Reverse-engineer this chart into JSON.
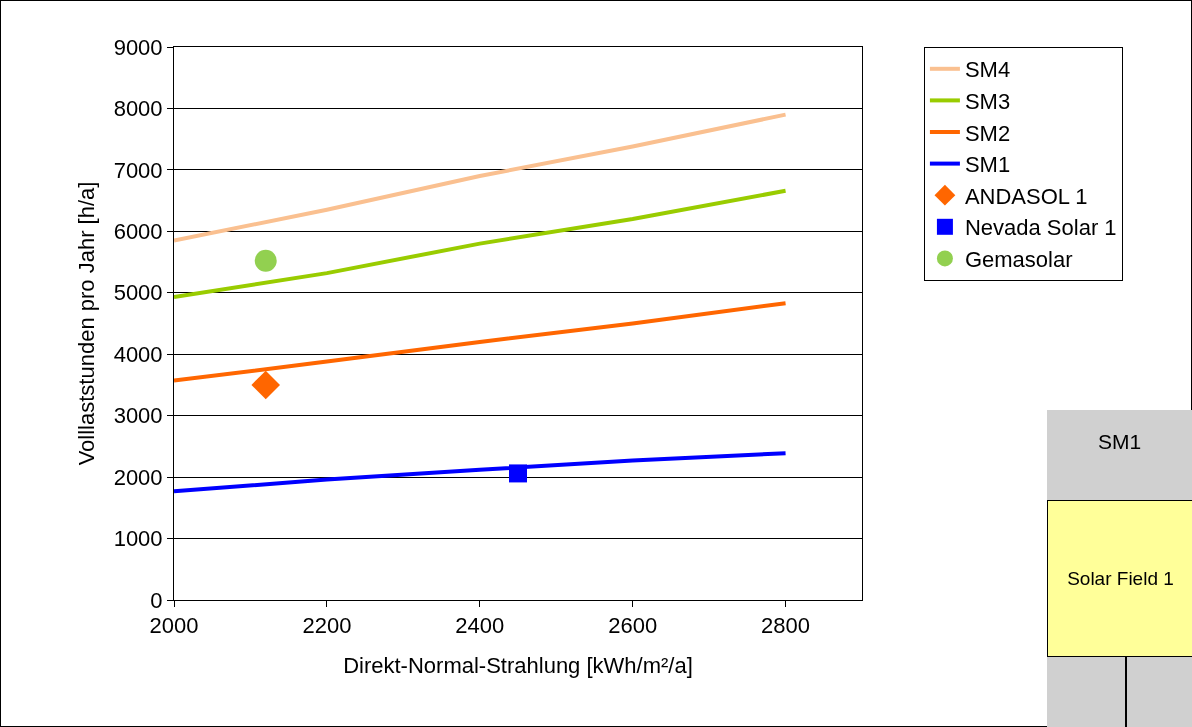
{
  "chart_data": {
    "type": "line",
    "xlabel": "Direkt-Normal-Strahlung [kWh/m²/a]",
    "ylabel": "Volllaststunden pro Jahr [h/a]",
    "xlim": [
      2000,
      2900
    ],
    "xticks": [
      2000,
      2200,
      2400,
      2600,
      2800
    ],
    "ylim": [
      0,
      9000
    ],
    "yticks": [
      0,
      1000,
      2000,
      3000,
      4000,
      5000,
      6000,
      7000,
      8000,
      9000
    ],
    "grid": "y",
    "legend": "right",
    "series": [
      {
        "name": "SM4",
        "color": "#fac090",
        "marker": "none",
        "x": [
          2000,
          2200,
          2400,
          2600,
          2800
        ],
        "values": [
          5850,
          6350,
          6900,
          7380,
          7900
        ]
      },
      {
        "name": "SM3",
        "color": "#99cc00",
        "marker": "none",
        "x": [
          2000,
          2200,
          2400,
          2600,
          2800
        ],
        "values": [
          4930,
          5320,
          5800,
          6200,
          6660
        ]
      },
      {
        "name": "SM2",
        "color": "#ff6600",
        "marker": "none",
        "x": [
          2000,
          2200,
          2400,
          2600,
          2800
        ],
        "values": [
          3570,
          3880,
          4200,
          4500,
          4830
        ]
      },
      {
        "name": "SM1",
        "color": "#0000ff",
        "marker": "none",
        "x": [
          2000,
          2200,
          2400,
          2600,
          2800
        ],
        "values": [
          1770,
          1960,
          2120,
          2270,
          2390
        ]
      },
      {
        "name": "ANDASOL 1",
        "type": "scatter",
        "color": "#ff6600",
        "marker": "diamond",
        "x": [
          2120
        ],
        "values": [
          3500
        ]
      },
      {
        "name": "Nevada Solar 1",
        "type": "scatter",
        "color": "#0000ff",
        "marker": "square",
        "x": [
          2450
        ],
        "values": [
          2060
        ]
      },
      {
        "name": "Gemasolar",
        "type": "scatter",
        "color": "#92d050",
        "marker": "circle",
        "x": [
          2120
        ],
        "values": [
          5520
        ]
      }
    ],
    "annotations": [
      "SM1",
      "Solar Field 1"
    ]
  }
}
